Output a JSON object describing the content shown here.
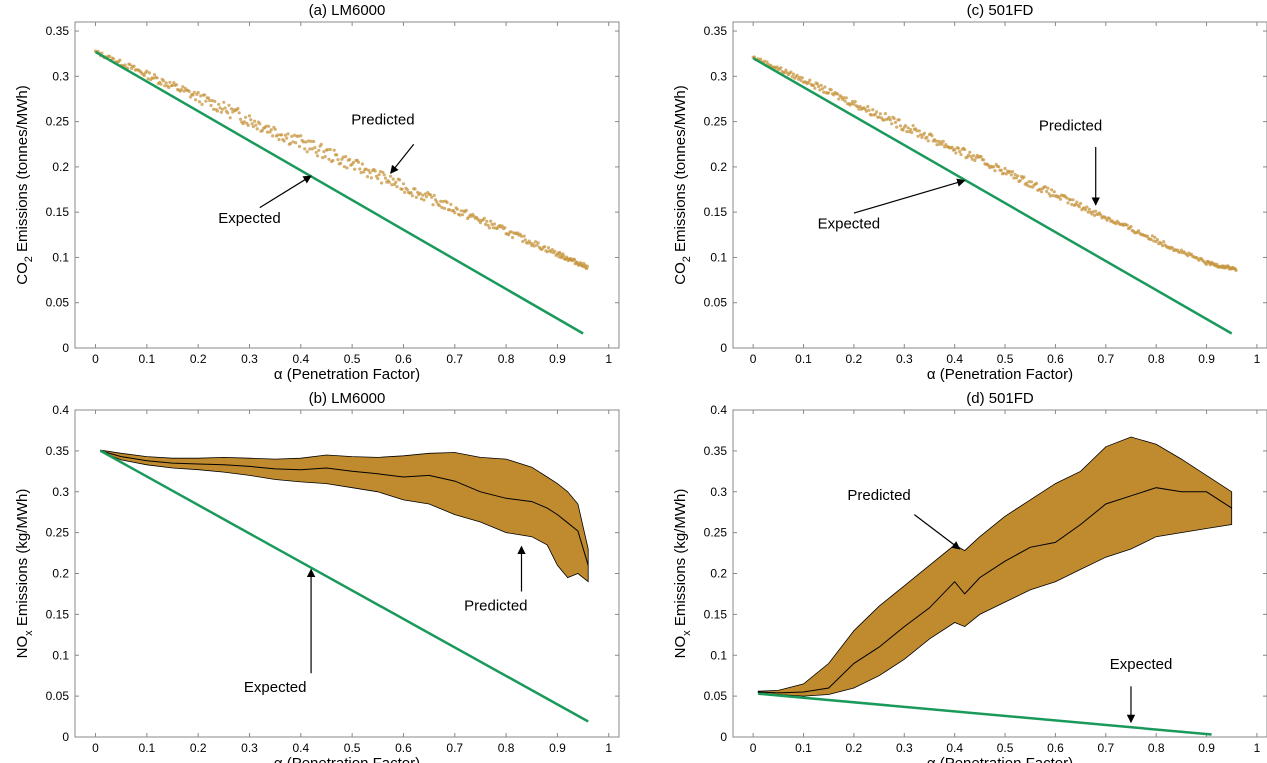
{
  "figure": {
    "theme": {
      "band_fill": "#c08a2e",
      "band_stroke": "#000000",
      "expected_color": "#1a9a5a",
      "predicted_scatter_color": "#c7953f",
      "axis_color": "#888888",
      "text_color": "#000000"
    }
  },
  "chart_data": [
    {
      "id": "a",
      "type": "line",
      "title": "(a) LM6000",
      "xlabel": "α (Penetration Factor)",
      "ylabel_main": "CO",
      "ylabel_sub": "2",
      "ylabel_tail": " Emissions (tonnes/MWh)",
      "xlim": [
        -0.04,
        1.02
      ],
      "ylim": [
        0,
        0.36
      ],
      "xticks": [
        0,
        0.1,
        0.2,
        0.3,
        0.4,
        0.5,
        0.6,
        0.7,
        0.8,
        0.9,
        1
      ],
      "xticklabels": [
        "0",
        "0.1",
        "0.2",
        "0.3",
        "0.4",
        "0.5",
        "0.6",
        "0.7",
        "0.8",
        "0.9",
        "1"
      ],
      "yticks": [
        0,
        0.05,
        0.1,
        0.15,
        0.2,
        0.25,
        0.3,
        0.35
      ],
      "yticklabels": [
        "0",
        "0.05",
        "0.1",
        "0.15",
        "0.2",
        "0.25",
        "0.3",
        "0.35"
      ],
      "series": [
        {
          "name": "Predicted",
          "style": "scatter_band",
          "x": [
            0.0,
            0.1,
            0.2,
            0.3,
            0.4,
            0.5,
            0.6,
            0.7,
            0.8,
            0.9,
            0.96
          ],
          "y": [
            0.327,
            0.302,
            0.277,
            0.252,
            0.227,
            0.203,
            0.178,
            0.153,
            0.129,
            0.104,
            0.089
          ],
          "spread": [
            0.002,
            0.004,
            0.006,
            0.008,
            0.008,
            0.007,
            0.006,
            0.005,
            0.004,
            0.003,
            0.002
          ]
        },
        {
          "name": "Expected",
          "style": "line",
          "x": [
            0.0,
            0.95
          ],
          "y": [
            0.327,
            0.016
          ]
        }
      ],
      "annotations": [
        {
          "text": "Predicted",
          "tx": 0.56,
          "ty": 0.247,
          "ax": 0.62,
          "ay": 0.225,
          "hx": 0.575,
          "hy": 0.193
        },
        {
          "text": "Expected",
          "tx": 0.3,
          "ty": 0.138,
          "ax": 0.32,
          "ay": 0.155,
          "hx": 0.42,
          "hy": 0.19
        }
      ]
    },
    {
      "id": "b",
      "type": "area",
      "title": "(b) LM6000",
      "xlabel": "α (Penetration Factor)",
      "ylabel_main": "NO",
      "ylabel_sub": "x",
      "ylabel_tail": " Emissions (kg/MWh)",
      "xlim": [
        -0.04,
        1.02
      ],
      "ylim": [
        0,
        0.4
      ],
      "xticks": [
        0,
        0.1,
        0.2,
        0.3,
        0.4,
        0.5,
        0.6,
        0.7,
        0.8,
        0.9,
        1
      ],
      "xticklabels": [
        "0",
        "0.1",
        "0.2",
        "0.3",
        "0.4",
        "0.5",
        "0.6",
        "0.7",
        "0.8",
        "0.9",
        "1"
      ],
      "yticks": [
        0,
        0.05,
        0.1,
        0.15,
        0.2,
        0.25,
        0.3,
        0.35,
        0.4
      ],
      "yticklabels": [
        "0",
        "0.05",
        "0.1",
        "0.15",
        "0.2",
        "0.25",
        "0.3",
        "0.35",
        "0.4"
      ],
      "series": [
        {
          "name": "Predicted",
          "style": "band",
          "x": [
            0.01,
            0.05,
            0.1,
            0.15,
            0.2,
            0.25,
            0.3,
            0.35,
            0.4,
            0.45,
            0.5,
            0.55,
            0.6,
            0.65,
            0.7,
            0.75,
            0.8,
            0.85,
            0.88,
            0.9,
            0.92,
            0.94,
            0.96
          ],
          "y": [
            0.35,
            0.343,
            0.338,
            0.335,
            0.334,
            0.333,
            0.331,
            0.328,
            0.327,
            0.329,
            0.325,
            0.322,
            0.318,
            0.32,
            0.313,
            0.3,
            0.292,
            0.288,
            0.28,
            0.272,
            0.262,
            0.252,
            0.21
          ],
          "upper": [
            0.351,
            0.347,
            0.343,
            0.341,
            0.341,
            0.342,
            0.341,
            0.34,
            0.341,
            0.345,
            0.343,
            0.342,
            0.344,
            0.347,
            0.348,
            0.342,
            0.34,
            0.33,
            0.318,
            0.31,
            0.3,
            0.285,
            0.23
          ],
          "lower": [
            0.349,
            0.339,
            0.333,
            0.329,
            0.327,
            0.324,
            0.32,
            0.315,
            0.312,
            0.31,
            0.305,
            0.3,
            0.29,
            0.285,
            0.272,
            0.263,
            0.25,
            0.245,
            0.235,
            0.21,
            0.195,
            0.2,
            0.19
          ]
        },
        {
          "name": "Expected",
          "style": "line",
          "x": [
            0.01,
            0.96
          ],
          "y": [
            0.35,
            0.019
          ]
        }
      ],
      "annotations": [
        {
          "text": "Predicted",
          "tx": 0.78,
          "ty": 0.155,
          "ax": 0.83,
          "ay": 0.178,
          "hx": 0.83,
          "hy": 0.233
        },
        {
          "text": "Expected",
          "tx": 0.35,
          "ty": 0.055,
          "ax": 0.42,
          "ay": 0.078,
          "hx": 0.42,
          "hy": 0.205
        }
      ]
    },
    {
      "id": "c",
      "type": "line",
      "title": "(c) 501FD",
      "xlabel": "α (Penetration Factor)",
      "ylabel_main": "CO",
      "ylabel_sub": "2",
      "ylabel_tail": " Emissions (tonnes/MWh)",
      "xlim": [
        -0.04,
        1.02
      ],
      "ylim": [
        0,
        0.36
      ],
      "xticks": [
        0,
        0.1,
        0.2,
        0.3,
        0.4,
        0.5,
        0.6,
        0.7,
        0.8,
        0.9,
        1
      ],
      "xticklabels": [
        "0",
        "0.1",
        "0.2",
        "0.3",
        "0.4",
        "0.5",
        "0.6",
        "0.7",
        "0.8",
        "0.9",
        "1"
      ],
      "yticks": [
        0,
        0.05,
        0.1,
        0.15,
        0.2,
        0.25,
        0.3,
        0.35
      ],
      "yticklabels": [
        "0",
        "0.05",
        "0.1",
        "0.15",
        "0.2",
        "0.25",
        "0.3",
        "0.35"
      ],
      "series": [
        {
          "name": "Predicted",
          "style": "scatter_band",
          "x": [
            0.0,
            0.1,
            0.2,
            0.3,
            0.4,
            0.5,
            0.6,
            0.7,
            0.8,
            0.9,
            0.96
          ],
          "y": [
            0.321,
            0.296,
            0.27,
            0.245,
            0.22,
            0.195,
            0.169,
            0.144,
            0.119,
            0.094,
            0.087
          ],
          "spread": [
            0.002,
            0.003,
            0.004,
            0.005,
            0.005,
            0.004,
            0.004,
            0.003,
            0.003,
            0.002,
            0.002
          ]
        },
        {
          "name": "Expected",
          "style": "line",
          "x": [
            0.0,
            0.95
          ],
          "y": [
            0.32,
            0.016
          ]
        }
      ],
      "annotations": [
        {
          "text": "Predicted",
          "tx": 0.63,
          "ty": 0.24,
          "ax": 0.68,
          "ay": 0.222,
          "hx": 0.68,
          "hy": 0.158
        },
        {
          "text": "Expected",
          "tx": 0.19,
          "ty": 0.132,
          "ax": 0.2,
          "ay": 0.149,
          "hx": 0.42,
          "hy": 0.185
        }
      ]
    },
    {
      "id": "d",
      "type": "area",
      "title": "(d) 501FD",
      "xlabel": "α (Penetration Factor)",
      "ylabel_main": "NO",
      "ylabel_sub": "x",
      "ylabel_tail": " Emissions (kg/MWh)",
      "xlim": [
        -0.04,
        1.02
      ],
      "ylim": [
        0,
        0.4
      ],
      "xticks": [
        0,
        0.1,
        0.2,
        0.3,
        0.4,
        0.5,
        0.6,
        0.7,
        0.8,
        0.9,
        1
      ],
      "xticklabels": [
        "0",
        "0.1",
        "0.2",
        "0.3",
        "0.4",
        "0.5",
        "0.6",
        "0.7",
        "0.8",
        "0.9",
        "1"
      ],
      "yticks": [
        0,
        0.05,
        0.1,
        0.15,
        0.2,
        0.25,
        0.3,
        0.35,
        0.4
      ],
      "yticklabels": [
        "0",
        "0.05",
        "0.1",
        "0.15",
        "0.2",
        "0.25",
        "0.3",
        "0.35",
        "0.4"
      ],
      "series": [
        {
          "name": "Predicted",
          "style": "band",
          "x": [
            0.01,
            0.05,
            0.1,
            0.15,
            0.2,
            0.25,
            0.3,
            0.35,
            0.4,
            0.42,
            0.45,
            0.5,
            0.55,
            0.6,
            0.65,
            0.7,
            0.75,
            0.8,
            0.85,
            0.9,
            0.95
          ],
          "y": [
            0.055,
            0.054,
            0.055,
            0.06,
            0.09,
            0.11,
            0.135,
            0.158,
            0.19,
            0.175,
            0.195,
            0.215,
            0.232,
            0.238,
            0.26,
            0.285,
            0.295,
            0.305,
            0.3,
            0.3,
            0.28
          ],
          "upper": [
            0.056,
            0.057,
            0.065,
            0.09,
            0.13,
            0.16,
            0.185,
            0.21,
            0.235,
            0.228,
            0.245,
            0.27,
            0.29,
            0.31,
            0.325,
            0.355,
            0.367,
            0.358,
            0.34,
            0.32,
            0.3
          ],
          "lower": [
            0.054,
            0.052,
            0.05,
            0.052,
            0.06,
            0.075,
            0.095,
            0.12,
            0.14,
            0.135,
            0.15,
            0.165,
            0.18,
            0.19,
            0.205,
            0.22,
            0.23,
            0.245,
            0.25,
            0.255,
            0.26
          ]
        },
        {
          "name": "Expected",
          "style": "line",
          "x": [
            0.01,
            0.91
          ],
          "y": [
            0.053,
            0.003
          ]
        }
      ],
      "annotations": [
        {
          "text": "Predicted",
          "tx": 0.25,
          "ty": 0.29,
          "ax": 0.32,
          "ay": 0.272,
          "hx": 0.41,
          "hy": 0.23
        },
        {
          "text": "Expected",
          "tx": 0.77,
          "ty": 0.083,
          "ax": 0.75,
          "ay": 0.062,
          "hx": 0.75,
          "hy": 0.018
        }
      ]
    }
  ]
}
